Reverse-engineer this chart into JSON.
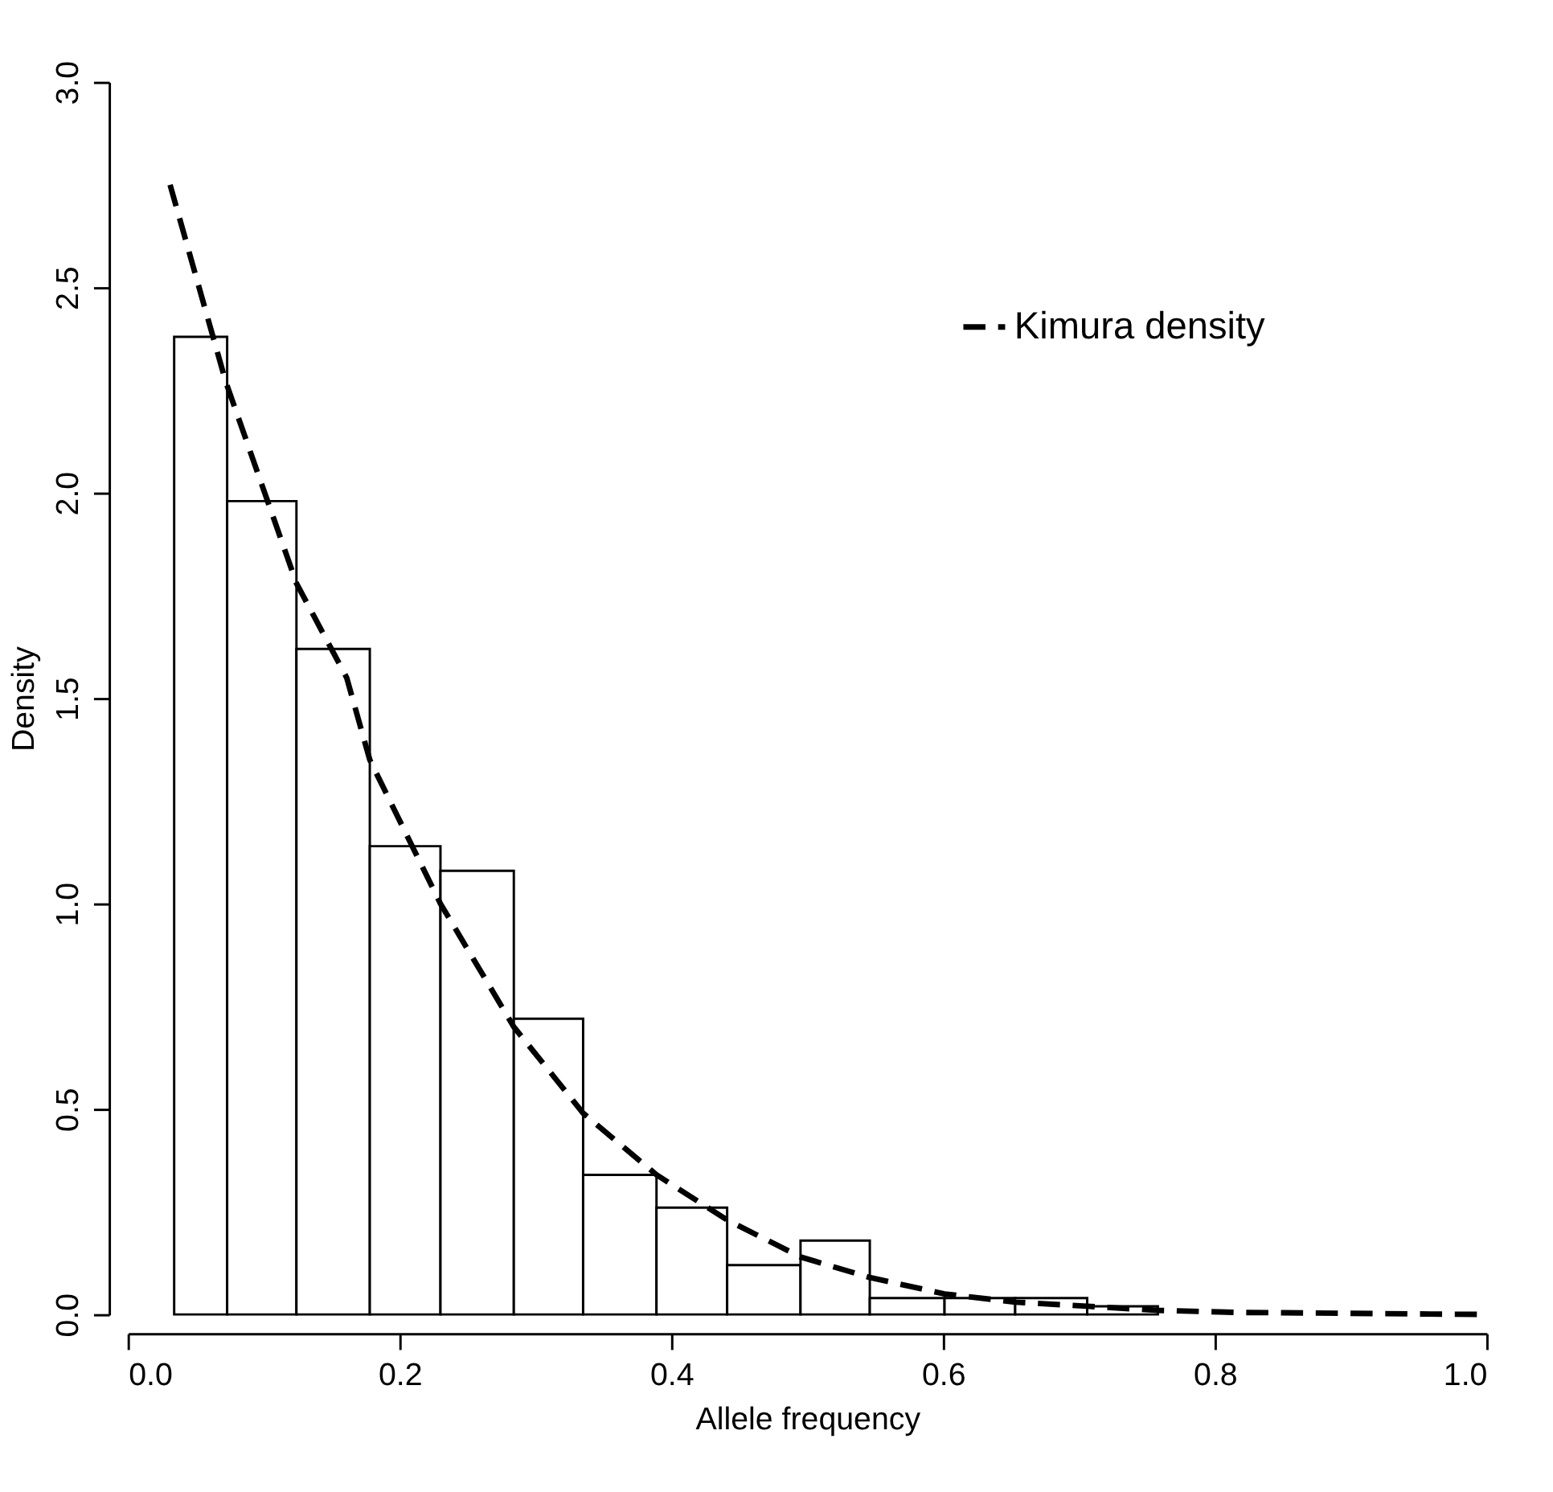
{
  "chart_data": {
    "type": "histogram",
    "xlabel": "Allele frequency",
    "ylabel": "Density",
    "bins": [
      0.034,
      0.073,
      0.124,
      0.178,
      0.23,
      0.284,
      0.335,
      0.389,
      0.441,
      0.495,
      0.546,
      0.601,
      0.653,
      0.706,
      0.758
    ],
    "values": [
      2.38,
      1.98,
      1.62,
      1.14,
      1.08,
      0.72,
      0.34,
      0.26,
      0.12,
      0.18,
      0.04,
      0.04,
      0.04,
      0.02
    ],
    "color": "#ffffff",
    "series": [
      {
        "name": "Kimura density",
        "type": "line",
        "color": "#000000",
        "line_style": "dashed",
        "x": [
          0.031,
          0.072,
          0.124,
          0.161,
          0.178,
          0.23,
          0.284,
          0.335,
          0.389,
          0.441,
          0.495,
          0.546,
          0.601,
          0.653,
          0.706,
          0.758,
          0.815,
          1.0
        ],
        "values": [
          2.75,
          2.27,
          1.78,
          1.55,
          1.35,
          1.0,
          0.7,
          0.49,
          0.34,
          0.23,
          0.14,
          0.09,
          0.05,
          0.03,
          0.02,
          0.01,
          0.005,
          0.0
        ]
      }
    ],
    "xlim": [
      0.0,
      1.0
    ],
    "xticks": [
      {
        "value": 0.0,
        "label": "0.0"
      },
      0.2,
      0.4,
      0.6,
      0.8,
      {
        "value": 1.0,
        "label": "1.0"
      }
    ],
    "ylim": [
      0.0,
      3.0
    ],
    "yticks": [
      {
        "value": 0.0,
        "label": "0.0"
      },
      0.5,
      {
        "value": 1.0,
        "label": "1.0"
      },
      1.5,
      {
        "value": 2.0,
        "label": "2.0"
      },
      2.5,
      {
        "value": 3.0,
        "label": "3.0"
      }
    ],
    "grid": false,
    "legend": "top right"
  }
}
